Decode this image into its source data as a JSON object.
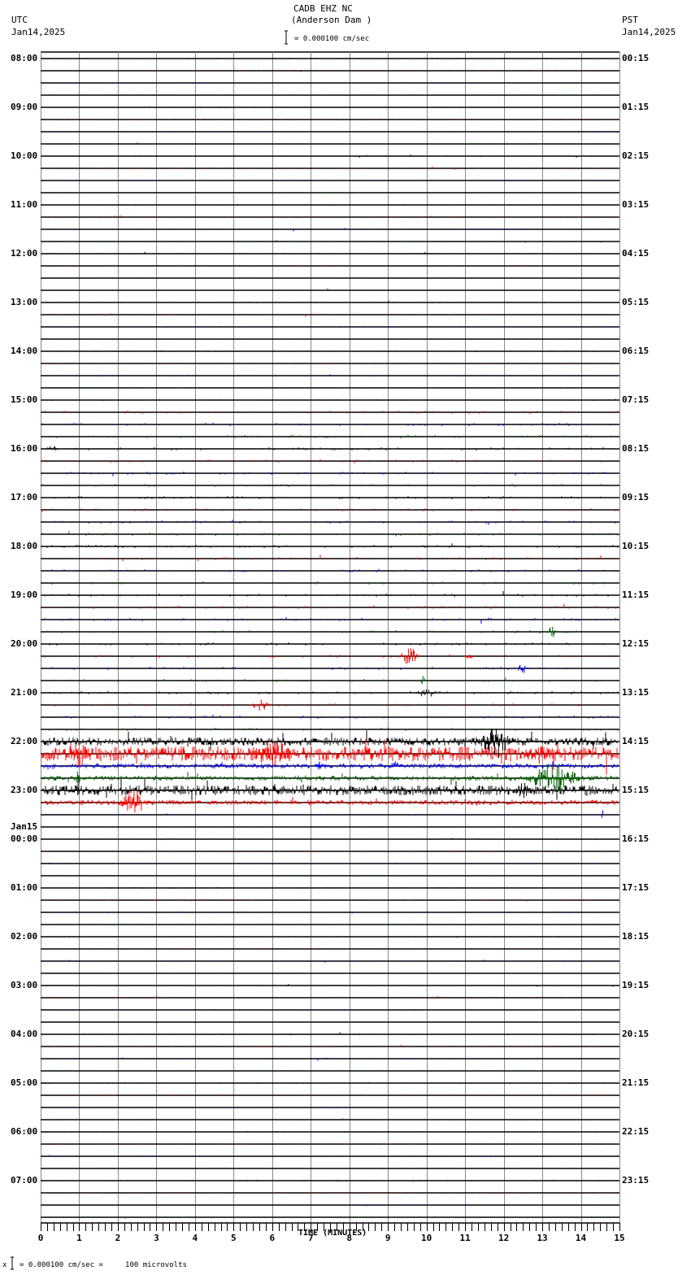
{
  "header": {
    "station": "CADB EHZ NC",
    "location": "(Anderson Dam )",
    "left_tz": "UTC",
    "left_date": "Jan14,2025",
    "right_tz": "PST",
    "right_date": "Jan14,2025",
    "scale_text": "= 0.000100 cm/sec"
  },
  "footer": {
    "scale_text": "= 0.000100 cm/sec =     100 microvolts",
    "prefix": "x"
  },
  "chart_data": {
    "type": "line",
    "title": "CADB EHZ NC (Anderson Dam )",
    "xlabel": "TIME (MINUTES)",
    "ylabel": "",
    "xlim": [
      0,
      15
    ],
    "x_ticks": [
      "0",
      "1",
      "2",
      "3",
      "4",
      "5",
      "6",
      "7",
      "8",
      "9",
      "10",
      "11",
      "12",
      "13",
      "14",
      "15"
    ],
    "grid": true,
    "trace_colors": [
      "#000000",
      "#ff0000",
      "#0000ff",
      "#006400"
    ],
    "traces_per_hour": 4,
    "left_labels": [
      {
        "row": 0,
        "text": "08:00"
      },
      {
        "row": 4,
        "text": "09:00"
      },
      {
        "row": 8,
        "text": "10:00"
      },
      {
        "row": 12,
        "text": "11:00"
      },
      {
        "row": 16,
        "text": "12:00"
      },
      {
        "row": 20,
        "text": "13:00"
      },
      {
        "row": 24,
        "text": "14:00"
      },
      {
        "row": 28,
        "text": "15:00"
      },
      {
        "row": 32,
        "text": "16:00"
      },
      {
        "row": 36,
        "text": "17:00"
      },
      {
        "row": 40,
        "text": "18:00"
      },
      {
        "row": 44,
        "text": "19:00"
      },
      {
        "row": 48,
        "text": "20:00"
      },
      {
        "row": 52,
        "text": "21:00"
      },
      {
        "row": 56,
        "text": "22:00"
      },
      {
        "row": 60,
        "text": "23:00"
      },
      {
        "row": 64,
        "text": "00:00",
        "date": "Jan15"
      },
      {
        "row": 68,
        "text": "01:00"
      },
      {
        "row": 72,
        "text": "02:00"
      },
      {
        "row": 76,
        "text": "03:00"
      },
      {
        "row": 80,
        "text": "04:00"
      },
      {
        "row": 84,
        "text": "05:00"
      },
      {
        "row": 88,
        "text": "06:00"
      },
      {
        "row": 92,
        "text": "07:00"
      }
    ],
    "right_labels": [
      {
        "row": 0,
        "text": "00:15"
      },
      {
        "row": 4,
        "text": "01:15"
      },
      {
        "row": 8,
        "text": "02:15"
      },
      {
        "row": 12,
        "text": "03:15"
      },
      {
        "row": 16,
        "text": "04:15"
      },
      {
        "row": 20,
        "text": "05:15"
      },
      {
        "row": 24,
        "text": "06:15"
      },
      {
        "row": 28,
        "text": "07:15"
      },
      {
        "row": 32,
        "text": "08:15"
      },
      {
        "row": 36,
        "text": "09:15"
      },
      {
        "row": 40,
        "text": "10:15"
      },
      {
        "row": 44,
        "text": "11:15"
      },
      {
        "row": 48,
        "text": "12:15"
      },
      {
        "row": 52,
        "text": "13:15"
      },
      {
        "row": 56,
        "text": "14:15"
      },
      {
        "row": 60,
        "text": "15:15"
      },
      {
        "row": 64,
        "text": "16:15"
      },
      {
        "row": 68,
        "text": "17:15"
      },
      {
        "row": 72,
        "text": "18:15"
      },
      {
        "row": 76,
        "text": "19:15"
      },
      {
        "row": 80,
        "text": "20:15"
      },
      {
        "row": 84,
        "text": "21:15"
      },
      {
        "row": 88,
        "text": "22:15"
      },
      {
        "row": 92,
        "text": "23:15"
      }
    ],
    "row_count": 96,
    "noise_rows": [
      {
        "row": 29,
        "level": 2
      },
      {
        "row": 30,
        "level": 2
      },
      {
        "row": 31,
        "level": 2
      },
      {
        "row": 32,
        "level": 2
      },
      {
        "row": 33,
        "level": 2
      },
      {
        "row": 34,
        "level": 2
      },
      {
        "row": 35,
        "level": 2
      },
      {
        "row": 36,
        "level": 2
      },
      {
        "row": 37,
        "level": 2
      },
      {
        "row": 38,
        "level": 2
      },
      {
        "row": 39,
        "level": 2
      },
      {
        "row": 40,
        "level": 2
      },
      {
        "row": 41,
        "level": 2
      },
      {
        "row": 42,
        "level": 2
      },
      {
        "row": 43,
        "level": 2
      },
      {
        "row": 44,
        "level": 2
      },
      {
        "row": 45,
        "level": 2
      },
      {
        "row": 46,
        "level": 2
      },
      {
        "row": 47,
        "level": 2
      },
      {
        "row": 48,
        "level": 2
      },
      {
        "row": 49,
        "level": 2
      },
      {
        "row": 50,
        "level": 2
      },
      {
        "row": 51,
        "level": 2
      },
      {
        "row": 52,
        "level": 2
      },
      {
        "row": 53,
        "level": 2
      },
      {
        "row": 54,
        "level": 2
      },
      {
        "row": 55,
        "level": 2
      },
      {
        "row": 56,
        "level": 5
      },
      {
        "row": 57,
        "level": 9
      },
      {
        "row": 58,
        "level": 3
      },
      {
        "row": 59,
        "level": 3
      },
      {
        "row": 60,
        "level": 6
      },
      {
        "row": 61,
        "level": 3
      }
    ],
    "events": [
      {
        "row": 32,
        "minute": 0.3,
        "width": 0.4,
        "amp": 4
      },
      {
        "row": 49,
        "minute": 9.55,
        "width": 0.5,
        "amp": 14
      },
      {
        "row": 49,
        "minute": 11.1,
        "width": 0.3,
        "amp": 4
      },
      {
        "row": 50,
        "minute": 12.5,
        "width": 0.4,
        "amp": 6
      },
      {
        "row": 47,
        "minute": 13.25,
        "width": 0.3,
        "amp": 8
      },
      {
        "row": 51,
        "minute": 9.9,
        "width": 0.2,
        "amp": 6
      },
      {
        "row": 52,
        "minute": 10.0,
        "width": 0.6,
        "amp": 8
      },
      {
        "row": 53,
        "minute": 5.7,
        "width": 0.6,
        "amp": 8
      },
      {
        "row": 56,
        "minute": 11.8,
        "width": 1.0,
        "amp": 22
      },
      {
        "row": 57,
        "minute": 6.0,
        "width": 1.2,
        "amp": 22
      },
      {
        "row": 57,
        "minute": 1.0,
        "width": 0.6,
        "amp": 18
      },
      {
        "row": 57,
        "minute": 13.0,
        "width": 1.0,
        "amp": 14
      },
      {
        "row": 58,
        "minute": 7.3,
        "width": 0.4,
        "amp": 8
      },
      {
        "row": 58,
        "minute": 9.2,
        "width": 0.4,
        "amp": 8
      },
      {
        "row": 59,
        "minute": 13.3,
        "width": 1.6,
        "amp": 20
      },
      {
        "row": 59,
        "minute": 0.95,
        "width": 0.2,
        "amp": 12
      },
      {
        "row": 60,
        "minute": 0.9,
        "width": 0.3,
        "amp": 10
      },
      {
        "row": 60,
        "minute": 12.5,
        "width": 0.5,
        "amp": 10
      },
      {
        "row": 61,
        "minute": 2.4,
        "width": 0.8,
        "amp": 18
      },
      {
        "row": 62,
        "minute": 14.55,
        "width": 0.05,
        "amp": 18
      }
    ]
  }
}
